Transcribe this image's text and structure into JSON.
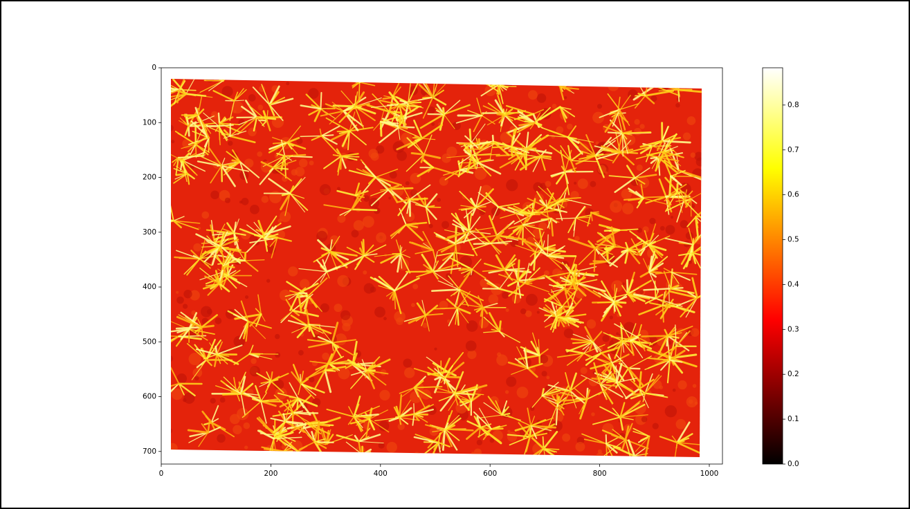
{
  "chart_data": {
    "type": "image",
    "colormap": "hot",
    "xlim": [
      0,
      1024
    ],
    "ylim": [
      723,
      0
    ],
    "xticks": [
      0,
      200,
      400,
      600,
      800,
      1000
    ],
    "yticks": [
      0,
      100,
      200,
      300,
      400,
      500,
      600,
      700
    ],
    "colorbar": {
      "lim": [
        0,
        0.883
      ],
      "ticks": [
        {
          "value": 0,
          "label": "0.0"
        },
        0.1,
        0.2,
        0.3,
        0.4,
        0.5,
        0.6,
        0.7,
        0.8
      ]
    }
  }
}
